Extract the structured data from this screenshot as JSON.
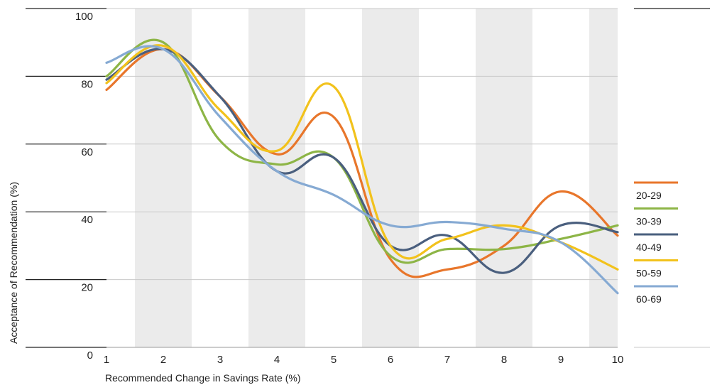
{
  "chart_data": {
    "type": "line",
    "xlabel": "Recommended Change in Savings Rate (%)",
    "ylabel": "Acceptance of Recommendation (%)",
    "xlim": [
      1,
      10
    ],
    "ylim": [
      0,
      100
    ],
    "x": [
      1,
      2,
      3,
      4,
      5,
      6,
      7,
      8,
      9,
      10
    ],
    "x_ticks": [
      "1",
      "2",
      "3",
      "4",
      "5",
      "6",
      "7",
      "8",
      "9",
      "10"
    ],
    "y_ticks": [
      "0",
      "20",
      "40",
      "60",
      "80",
      "100"
    ],
    "y_tick_values": [
      0,
      20,
      40,
      60,
      80,
      100
    ],
    "grid": "horizontal lines with alternating vertical bands",
    "legend_position": "right",
    "series": [
      {
        "name": "20-29",
        "color": "#E8762B",
        "values": [
          76,
          88,
          74,
          57,
          68,
          26,
          23,
          30,
          46,
          33
        ]
      },
      {
        "name": "30-39",
        "color": "#8DB546",
        "values": [
          80,
          90,
          61,
          54,
          56,
          27,
          29,
          29,
          32,
          36
        ]
      },
      {
        "name": "40-49",
        "color": "#4A5F7E",
        "values": [
          79,
          88,
          74,
          52,
          56,
          30,
          33,
          22,
          36,
          34
        ]
      },
      {
        "name": "50-59",
        "color": "#F2C21C",
        "values": [
          78,
          89,
          70,
          58,
          77,
          30,
          32,
          36,
          31,
          23
        ]
      },
      {
        "name": "60-69",
        "color": "#86AAD3",
        "values": [
          84,
          88,
          68,
          52,
          45,
          36,
          37,
          35,
          31,
          16
        ]
      }
    ]
  }
}
